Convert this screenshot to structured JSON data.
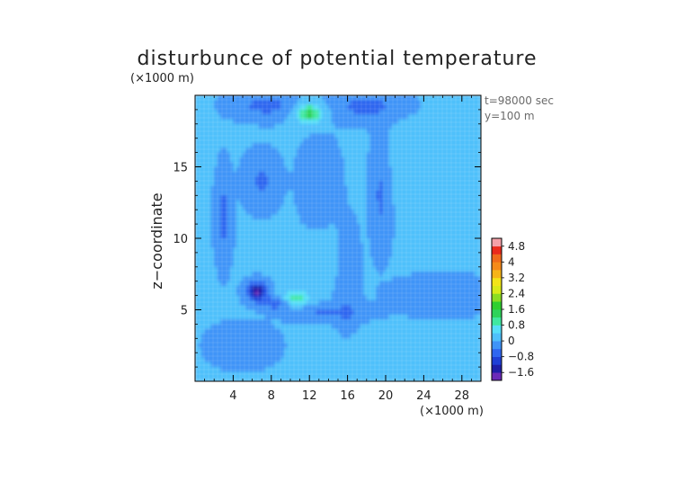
{
  "chart_data": {
    "type": "heatmap",
    "title": "disturbunce of potential temperature",
    "x_unit": "(×1000 m)",
    "y_unit": "(×1000 m)",
    "ylabel": "z−coordinate",
    "xlabel": "",
    "xlim": [
      0,
      30
    ],
    "ylim": [
      0,
      20
    ],
    "x_ticks": [
      4,
      8,
      12,
      16,
      20,
      24,
      28
    ],
    "x_tick_labels": [
      "4",
      "8",
      "12",
      "16",
      "20",
      "24",
      "28"
    ],
    "y_ticks": [
      5,
      10,
      15
    ],
    "y_tick_labels": [
      "5",
      "10",
      "15"
    ],
    "annotations": [
      "t=98000 sec",
      "y=100 m"
    ],
    "grid": true,
    "colorbar": {
      "position": "right",
      "levels": [
        -2.0,
        -1.6,
        -1.2,
        -0.8,
        -0.4,
        0,
        0.4,
        0.8,
        1.2,
        1.6,
        2.0,
        2.4,
        2.8,
        3.2,
        3.6,
        4.0,
        4.4,
        4.8,
        5.2
      ],
      "tick_values": [
        -1.6,
        -0.8,
        0,
        0.8,
        1.6,
        2.4,
        3.2,
        4,
        4.8
      ],
      "tick_labels": [
        "−1.6",
        "−0.8",
        "0",
        "0.8",
        "1.6",
        "2.4",
        "3.2",
        "4",
        "4.8"
      ],
      "colors": [
        "#6a2ab8",
        "#1e1ea8",
        "#1f3fd6",
        "#2f66f0",
        "#3f94f8",
        "#4fc0fb",
        "#56dff8",
        "#40e8a0",
        "#2ed35a",
        "#2fcf2f",
        "#8bdd22",
        "#d8ea18",
        "#f2e418",
        "#f6b418",
        "#f58a1a",
        "#f06a1c",
        "#ea2a1c",
        "#f4a0a8"
      ]
    },
    "field_features": [
      {
        "x": 12,
        "y": 18.7,
        "sx": 1.4,
        "sy": 0.7,
        "value": 1.4
      },
      {
        "x": 10.5,
        "y": 5.8,
        "sx": 1.5,
        "sy": 0.5,
        "value": 1.1
      },
      {
        "x": 6.5,
        "y": 6.3,
        "sx": 1.0,
        "sy": 0.6,
        "value": -1.7
      },
      {
        "x": 8.5,
        "y": 5.5,
        "sx": 1.5,
        "sy": 0.4,
        "value": -0.9
      },
      {
        "x": 3.0,
        "y": 11.5,
        "sx": 0.7,
        "sy": 2.6,
        "value": -0.6
      },
      {
        "x": 7.0,
        "y": 14.0,
        "sx": 1.5,
        "sy": 1.5,
        "value": -0.5
      },
      {
        "x": 7.5,
        "y": 19.3,
        "sx": 3.0,
        "sy": 0.8,
        "value": -0.6
      },
      {
        "x": 18.0,
        "y": 19.2,
        "sx": 3.2,
        "sy": 0.9,
        "value": -0.6
      },
      {
        "x": 13.0,
        "y": 14.0,
        "sx": 1.6,
        "sy": 2.2,
        "value": -0.4
      },
      {
        "x": 16.0,
        "y": 7.0,
        "sx": 1.0,
        "sy": 3.0,
        "value": -0.4
      },
      {
        "x": 19.5,
        "y": 13.0,
        "sx": 0.9,
        "sy": 3.0,
        "value": -0.5
      },
      {
        "x": 26.0,
        "y": 6.0,
        "sx": 4.0,
        "sy": 1.0,
        "value": -0.4
      },
      {
        "x": 14.0,
        "y": 4.8,
        "sx": 3.5,
        "sy": 0.5,
        "value": -0.5
      },
      {
        "x": 5.0,
        "y": 2.5,
        "sx": 3.0,
        "sy": 1.3,
        "value": -0.2
      },
      {
        "x": 22.5,
        "y": 15.0,
        "sx": 2.0,
        "sy": 2.5,
        "value": 0.2
      },
      {
        "x": 14.0,
        "y": 8.5,
        "sx": 1.5,
        "sy": 1.5,
        "value": 0.2
      },
      {
        "x": 17.0,
        "y": 2.0,
        "sx": 2.0,
        "sy": 1.0,
        "value": 0.25
      }
    ]
  }
}
